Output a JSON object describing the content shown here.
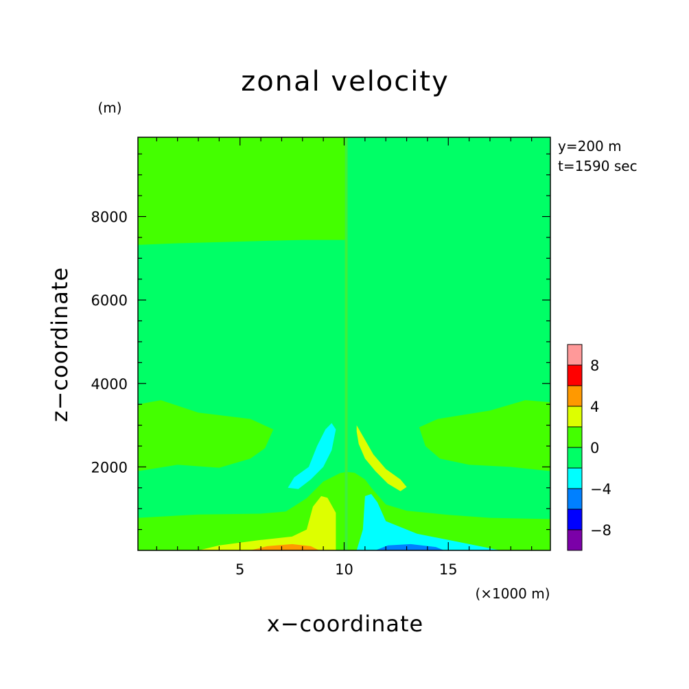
{
  "chart_data": {
    "type": "heatmap",
    "title": "zonal velocity",
    "xlabel": "x−coordinate",
    "ylabel": "z−coordinate",
    "x_unit": "(×1000 m)",
    "y_unit": "(m)",
    "info": [
      "y=200 m",
      "t=1590 sec"
    ],
    "xlim": [
      0.1,
      19.9
    ],
    "ylim": [
      0,
      9900
    ],
    "x_ticks": [
      5,
      10,
      15
    ],
    "x_tick_labels": [
      "5",
      "10",
      "15"
    ],
    "y_ticks": [
      2000,
      4000,
      6000,
      8000
    ],
    "y_tick_labels": [
      "2000",
      "4000",
      "6000",
      "8000"
    ],
    "colorbar": {
      "levels": [
        -10,
        -8,
        -6,
        -4,
        -2,
        0,
        2,
        4,
        6,
        8,
        10
      ],
      "colors": [
        "#7b00a8",
        "#0000ff",
        "#0080ff",
        "#00ffff",
        "#00ff66",
        "#44ff00",
        "#ddff00",
        "#ff9900",
        "#ff0000",
        "#ff9999"
      ],
      "tick_values": [
        -8,
        -4,
        0,
        4,
        8
      ],
      "tick_labels": [
        "−8",
        "−4",
        "0",
        "4",
        "8"
      ]
    },
    "background_level_color": "#00ff66",
    "regions": [
      {
        "value_range": [
          0,
          2
        ],
        "color": "#44ff00",
        "points": [
          [
            0.1,
            9900
          ],
          [
            10.1,
            9900
          ],
          [
            10.1,
            7440
          ],
          [
            8.0,
            7440
          ],
          [
            5.0,
            7400
          ],
          [
            2.0,
            7360
          ],
          [
            0.1,
            7320
          ]
        ]
      },
      {
        "value_range": [
          -2,
          0
        ],
        "color": "#00ff66",
        "points": [
          [
            10.1,
            9900
          ],
          [
            19.9,
            9900
          ],
          [
            19.9,
            7300
          ],
          [
            17.0,
            7360
          ],
          [
            13.0,
            7420
          ],
          [
            10.1,
            7460
          ]
        ]
      },
      {
        "value_range": [
          0,
          2
        ],
        "color": "#44ff00",
        "points": [
          [
            0.1,
            3500
          ],
          [
            1.2,
            3600
          ],
          [
            3.0,
            3300
          ],
          [
            5.5,
            3150
          ],
          [
            6.6,
            2900
          ],
          [
            6.2,
            2450
          ],
          [
            5.5,
            2200
          ],
          [
            4.0,
            1980
          ],
          [
            2.0,
            2050
          ],
          [
            0.1,
            1900
          ]
        ]
      },
      {
        "value_range": [
          0,
          2
        ],
        "color": "#44ff00",
        "points": [
          [
            19.9,
            3550
          ],
          [
            18.7,
            3600
          ],
          [
            17.0,
            3350
          ],
          [
            14.5,
            3150
          ],
          [
            13.6,
            2950
          ],
          [
            13.9,
            2500
          ],
          [
            14.6,
            2200
          ],
          [
            16.0,
            2050
          ],
          [
            18.0,
            2000
          ],
          [
            19.9,
            1900
          ]
        ]
      },
      {
        "value_range": [
          0,
          2
        ],
        "color": "#44ff00",
        "points": [
          [
            0.1,
            780
          ],
          [
            3.0,
            860
          ],
          [
            6.0,
            880
          ],
          [
            7.2,
            930
          ],
          [
            8.2,
            1250
          ],
          [
            9.0,
            1650
          ],
          [
            9.8,
            1850
          ],
          [
            10.1,
            1880
          ],
          [
            10.1,
            0
          ],
          [
            0.1,
            0
          ]
        ]
      },
      {
        "value_range": [
          0,
          2
        ],
        "color": "#44ff00",
        "points": [
          [
            10.1,
            1880
          ],
          [
            10.5,
            1860
          ],
          [
            11.0,
            1700
          ],
          [
            11.3,
            1500
          ],
          [
            12.0,
            1100
          ],
          [
            13.0,
            950
          ],
          [
            15.0,
            850
          ],
          [
            17.0,
            780
          ],
          [
            19.9,
            750
          ],
          [
            19.9,
            0
          ],
          [
            10.1,
            0
          ]
        ]
      },
      {
        "value_range": [
          2,
          4
        ],
        "color": "#ddff00",
        "points": [
          [
            3.0,
            0
          ],
          [
            4.0,
            120
          ],
          [
            6.0,
            250
          ],
          [
            7.5,
            330
          ],
          [
            8.2,
            500
          ],
          [
            8.5,
            1050
          ],
          [
            8.9,
            1300
          ],
          [
            9.2,
            1260
          ],
          [
            9.6,
            900
          ],
          [
            9.6,
            0
          ]
        ]
      },
      {
        "value_range": [
          -4,
          -2
        ],
        "color": "#00ffff",
        "points": [
          [
            10.6,
            0
          ],
          [
            10.9,
            500
          ],
          [
            11.0,
            1300
          ],
          [
            11.3,
            1350
          ],
          [
            11.6,
            1150
          ],
          [
            12.0,
            700
          ],
          [
            13.5,
            400
          ],
          [
            15.5,
            200
          ],
          [
            17.5,
            0
          ]
        ]
      },
      {
        "value_range": [
          4,
          6
        ],
        "color": "#ff9900",
        "points": [
          [
            5.5,
            0
          ],
          [
            6.3,
            100
          ],
          [
            7.5,
            150
          ],
          [
            8.4,
            100
          ],
          [
            8.8,
            0
          ]
        ]
      },
      {
        "value_range": [
          -6,
          -4
        ],
        "color": "#0080ff",
        "points": [
          [
            11.5,
            0
          ],
          [
            12.1,
            120
          ],
          [
            13.2,
            150
          ],
          [
            14.4,
            80
          ],
          [
            14.8,
            0
          ]
        ]
      },
      {
        "value_range": [
          -4,
          -2
        ],
        "color": "#00ffff",
        "points": [
          [
            7.3,
            1500
          ],
          [
            7.6,
            1750
          ],
          [
            8.3,
            2000
          ],
          [
            8.7,
            2500
          ],
          [
            9.1,
            2900
          ],
          [
            9.4,
            3050
          ],
          [
            9.6,
            2900
          ],
          [
            9.4,
            2400
          ],
          [
            9.0,
            2000
          ],
          [
            8.4,
            1700
          ],
          [
            7.8,
            1470
          ]
        ]
      },
      {
        "value_range": [
          2,
          4
        ],
        "color": "#ddff00",
        "points": [
          [
            10.6,
            3000
          ],
          [
            11.0,
            2650
          ],
          [
            11.4,
            2300
          ],
          [
            12.0,
            1950
          ],
          [
            12.7,
            1700
          ],
          [
            13.0,
            1520
          ],
          [
            12.7,
            1420
          ],
          [
            12.1,
            1600
          ],
          [
            11.5,
            1900
          ],
          [
            11.0,
            2200
          ],
          [
            10.7,
            2550
          ],
          [
            10.6,
            2850
          ]
        ]
      }
    ]
  }
}
